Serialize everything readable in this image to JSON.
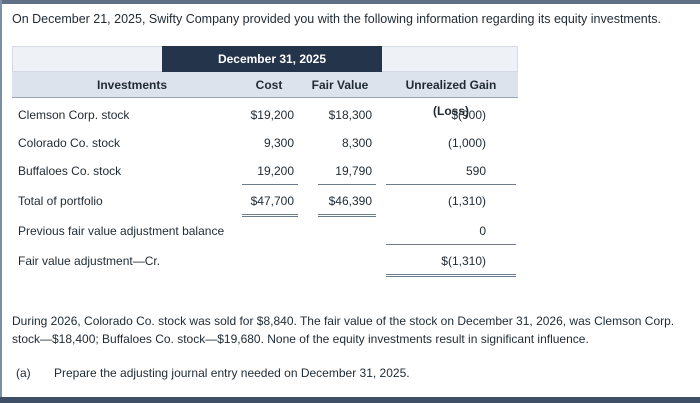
{
  "intro": "On December 21, 2025, Swifty Company provided you with the following information regarding its equity investments.",
  "table": {
    "date_header": "December 31, 2025",
    "columns": {
      "investments": "Investments",
      "cost": "Cost",
      "fair_value": "Fair Value",
      "gain_loss": "Unrealized Gain (Loss)"
    },
    "rows": [
      {
        "label": "Clemson Corp. stock",
        "cost": "$19,200",
        "fair_value": "$18,300",
        "gain_loss": "$(900)"
      },
      {
        "label": "Colorado Co. stock",
        "cost": "9,300",
        "fair_value": "8,300",
        "gain_loss": "(1,000)"
      },
      {
        "label": "Buffaloes Co. stock",
        "cost": "19,200",
        "fair_value": "19,790",
        "gain_loss": "590"
      }
    ],
    "total": {
      "label": "Total of portfolio",
      "cost": "$47,700",
      "fair_value": "$46,390",
      "gain_loss": "(1,310)"
    },
    "previous": {
      "label": "Previous fair value adjustment balance",
      "gain_loss": "0"
    },
    "adjustment": {
      "label": "Fair value adjustment—Cr.",
      "gain_loss": "$(1,310)"
    }
  },
  "paragraph": "During 2026, Colorado Co. stock was sold for $8,840. The fair value of the stock on December 31, 2026, was Clemson Corp. stock—$18,400; Buffaloes Co. stock—$19,680. None of the equity investments result in significant influence.",
  "part_a": {
    "tag": "(a)",
    "text": "Prepare the adjusting journal entry needed on December 31, 2025."
  }
}
